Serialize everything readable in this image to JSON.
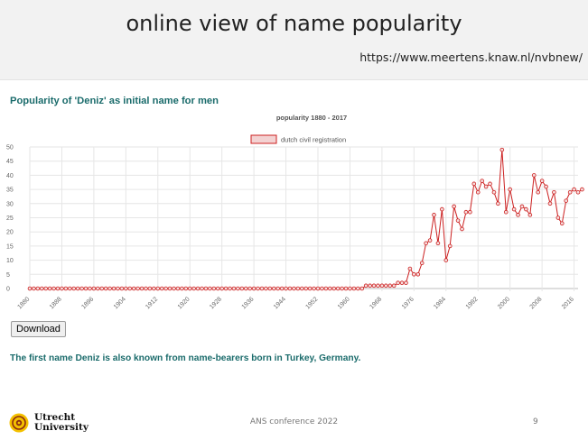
{
  "slide": {
    "title": "online view of name popularity",
    "url": "https://www.meertens.knaw.nl/nvbnew/"
  },
  "content": {
    "heading": "Popularity of 'Deniz' as initial name for men",
    "download_label": "Download",
    "info_text": "The first name Deniz is also known from name-bearers born in Turkey, Germany."
  },
  "footer": {
    "logo_line1": "Utrecht",
    "logo_line2": "University",
    "conference": "ANS conference 2022",
    "page_number": "9"
  },
  "colors": {
    "series": "#cc2020",
    "heading": "#1a6b6b",
    "logo_yellow": "#f4c100"
  },
  "chart_data": {
    "type": "line",
    "title": "popularity 1880 - 2017",
    "legend": "dutch civil registration",
    "legend_position": "top",
    "grid": true,
    "ylim": [
      0,
      50
    ],
    "y_ticks": [
      0,
      5,
      10,
      15,
      20,
      25,
      30,
      35,
      40,
      45,
      50
    ],
    "x_ticks": [
      1880,
      1888,
      1896,
      1904,
      1912,
      1920,
      1928,
      1936,
      1944,
      1952,
      1960,
      1968,
      1976,
      1984,
      1992,
      2000,
      2008,
      2016
    ],
    "x_start": 1880,
    "x_end": 2017,
    "series": [
      {
        "name": "dutch civil registration",
        "values": [
          0,
          0,
          0,
          0,
          0,
          0,
          0,
          0,
          0,
          0,
          0,
          0,
          0,
          0,
          0,
          0,
          0,
          0,
          0,
          0,
          0,
          0,
          0,
          0,
          0,
          0,
          0,
          0,
          0,
          0,
          0,
          0,
          0,
          0,
          0,
          0,
          0,
          0,
          0,
          0,
          0,
          0,
          0,
          0,
          0,
          0,
          0,
          0,
          0,
          0,
          0,
          0,
          0,
          0,
          0,
          0,
          0,
          0,
          0,
          0,
          0,
          0,
          0,
          0,
          0,
          0,
          0,
          0,
          0,
          0,
          0,
          0,
          0,
          0,
          0,
          0,
          0,
          0,
          0,
          0,
          0,
          0,
          0,
          0,
          1,
          1,
          1,
          1,
          1,
          1,
          1,
          1,
          2,
          2,
          2,
          7,
          5,
          5,
          9,
          16,
          17,
          26,
          16,
          28,
          10,
          15,
          29,
          24,
          21,
          27,
          27,
          37,
          34,
          38,
          36,
          37,
          34,
          30,
          49,
          27,
          35,
          28,
          26,
          29,
          28,
          26,
          40,
          34,
          38,
          36,
          30,
          34,
          25,
          23,
          31,
          34,
          35,
          34,
          35
        ]
      }
    ]
  }
}
